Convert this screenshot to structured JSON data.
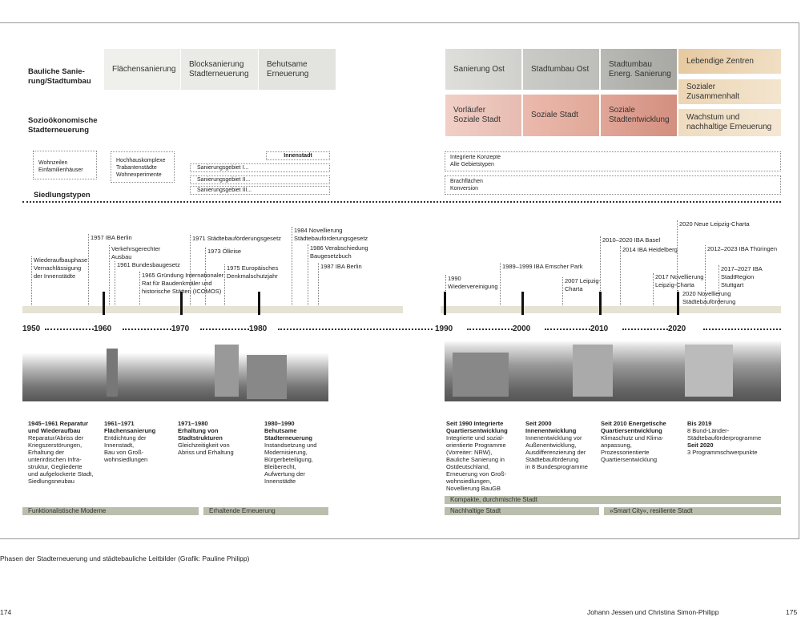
{
  "rows": {
    "bauliche": "Bauliche Sanie-\nrung/Stadtumbau",
    "sozio": "Sozioökonomische\nStadterneuerung",
    "siedlung": "Siedlungstypen"
  },
  "bauliche_left": [
    "Flächensanierung",
    "Blocksanierung\nStadterneuerung",
    "Behutsame\nErneuerung"
  ],
  "bauliche_right": [
    "Sanierung Ost",
    "Stadtumbau Ost",
    "Stadtumbau\nEnerg. Sanierung"
  ],
  "sozio_right": [
    "Vorläufer\nSoziale Stadt",
    "Soziale Stadt",
    "Soziale\nStadtentwicklung"
  ],
  "current_programs": [
    "Lebendige Zentren",
    "Sozialer\nZusammenhalt",
    "Wachstum und\nnachhaltige Erneuerung"
  ],
  "siedlung_boxes": [
    "Wohnzeilen\nEinfamilienhäuser",
    "Hochhauskomplexe\nTrabantenstädte\nWohnexperimente",
    "Innenstadt",
    "Sanierungsgebiet I...",
    "Sanierungsgebiet II...",
    "Sanierungsgebiet III...",
    "Integrierte Konzepte\nAlle Gebietstypen",
    "Brachflächen\nKonversion"
  ],
  "events": [
    "Wiederaufbauphase\nVernachlässigung\nder Innenstädte",
    "1957 IBA Berlin",
    "Verkehrsgerechter\nAusbau",
    "1961 Bundesbaugesetz",
    "1965 Gründung Internationaler\nRat für Baudenkmäler und\nhistorische Stätten (ICOMOS)",
    "1971 Städtebauförderungsgesetz",
    "1973 Ölkrise",
    "1975 Europäisches\nDenkmalschutzjahr",
    "1984 Novellierung\nStädtebauförderungsgesetz",
    "1986 Verabschiedung\nBaugesetzbuch",
    "1987 IBA Berlin",
    "1990\nWiedervereinigung",
    "1989–1999 IBA Emscher Park",
    "2007 Leipzig-\nCharta",
    "2010–2020 IBA Basel",
    "2014 IBA Heidelberg",
    "2017 Novellierung\nLeipzig-Charta",
    "2020 Neue Leipzig-Charta",
    "2020 Novellierung\nStädtebauförderung",
    "2012–2023 IBA Thüringen",
    "2017–2027 IBA\nStadtRegion\nStuttgart"
  ],
  "years": [
    "1950",
    "1960",
    "1970",
    "1980",
    "1990",
    "2000",
    "2010",
    "2020"
  ],
  "phases": [
    {
      "title": "1945–1961 Reparatur\nund Wiederaufbau",
      "text": "Reparatur/Abriss der\nKriegszerstörungen,\nErhaltung der\nunterirdischen Infra-\nstruktur, Gegliederte\nund aufgelockerte Stadt,\nSiedlungsneubau"
    },
    {
      "title": "1961–1971\nFlächensanierung",
      "text": "Entdichtung der\nInnenstadt,\nBau von Groß-\nwohnsiedlungen"
    },
    {
      "title": "1971–1980\nErhaltung von\nStadtstrukturen",
      "text": "Gleichzeitigkeit von\nAbriss und Erhaltung"
    },
    {
      "title": "1980–1990\nBehutsame\nStadterneuerung",
      "text": "Instandsetzung und\nModernisierung,\nBürgerbeteiligung,\nBleiberecht,\nAufwertung der\nInnenstädte"
    },
    {
      "title": "Seit 1990 Integrierte\nQuartiersentwicklung",
      "text": "Integrierte und sozial-\norientierte Programme\n(Vorreiter: NRW),\nBauliche Sanierung in\nOstdeutschland,\nErneuerung von Groß-\nwohnsiedlungen,\nNovellierung BauGB"
    },
    {
      "title": "Seit 2000\nInnenentwicklung",
      "text": "Innenentwicklung vor\nAußenentwicklung,\nAusdifferenzierung der\nStädtebauförderung\nin 8 Bundesprogramme"
    },
    {
      "title": "Seit 2010 Energetische\nQuartiersentwicklung",
      "text": "Klimaschutz und Klima-\nanpassung,\nProzessorientierte\nQuartiersentwicklung"
    },
    {
      "title": "Bis 2019",
      "text": "8 Bund-Länder-\nStädtebauförderprogramme",
      "title2": "Seit 2020",
      "text2": "3 Programmschwerpunkte"
    }
  ],
  "leitbilder": [
    "Funktionalistische Moderne",
    "Erhaltende Erneuerung",
    "Kompakte, durchmischte Stadt",
    "Nachhaltige Stadt",
    "»Smart City«, resiliente Stadt"
  ],
  "caption": "Phasen der Stadterneuerung und städtebauliche Leitbilder (Grafik: Pauline Philipp)",
  "footer": {
    "page_left": "174",
    "authors": "Johann Jessen und Christina Simon-Philipp",
    "page_right": "175"
  }
}
